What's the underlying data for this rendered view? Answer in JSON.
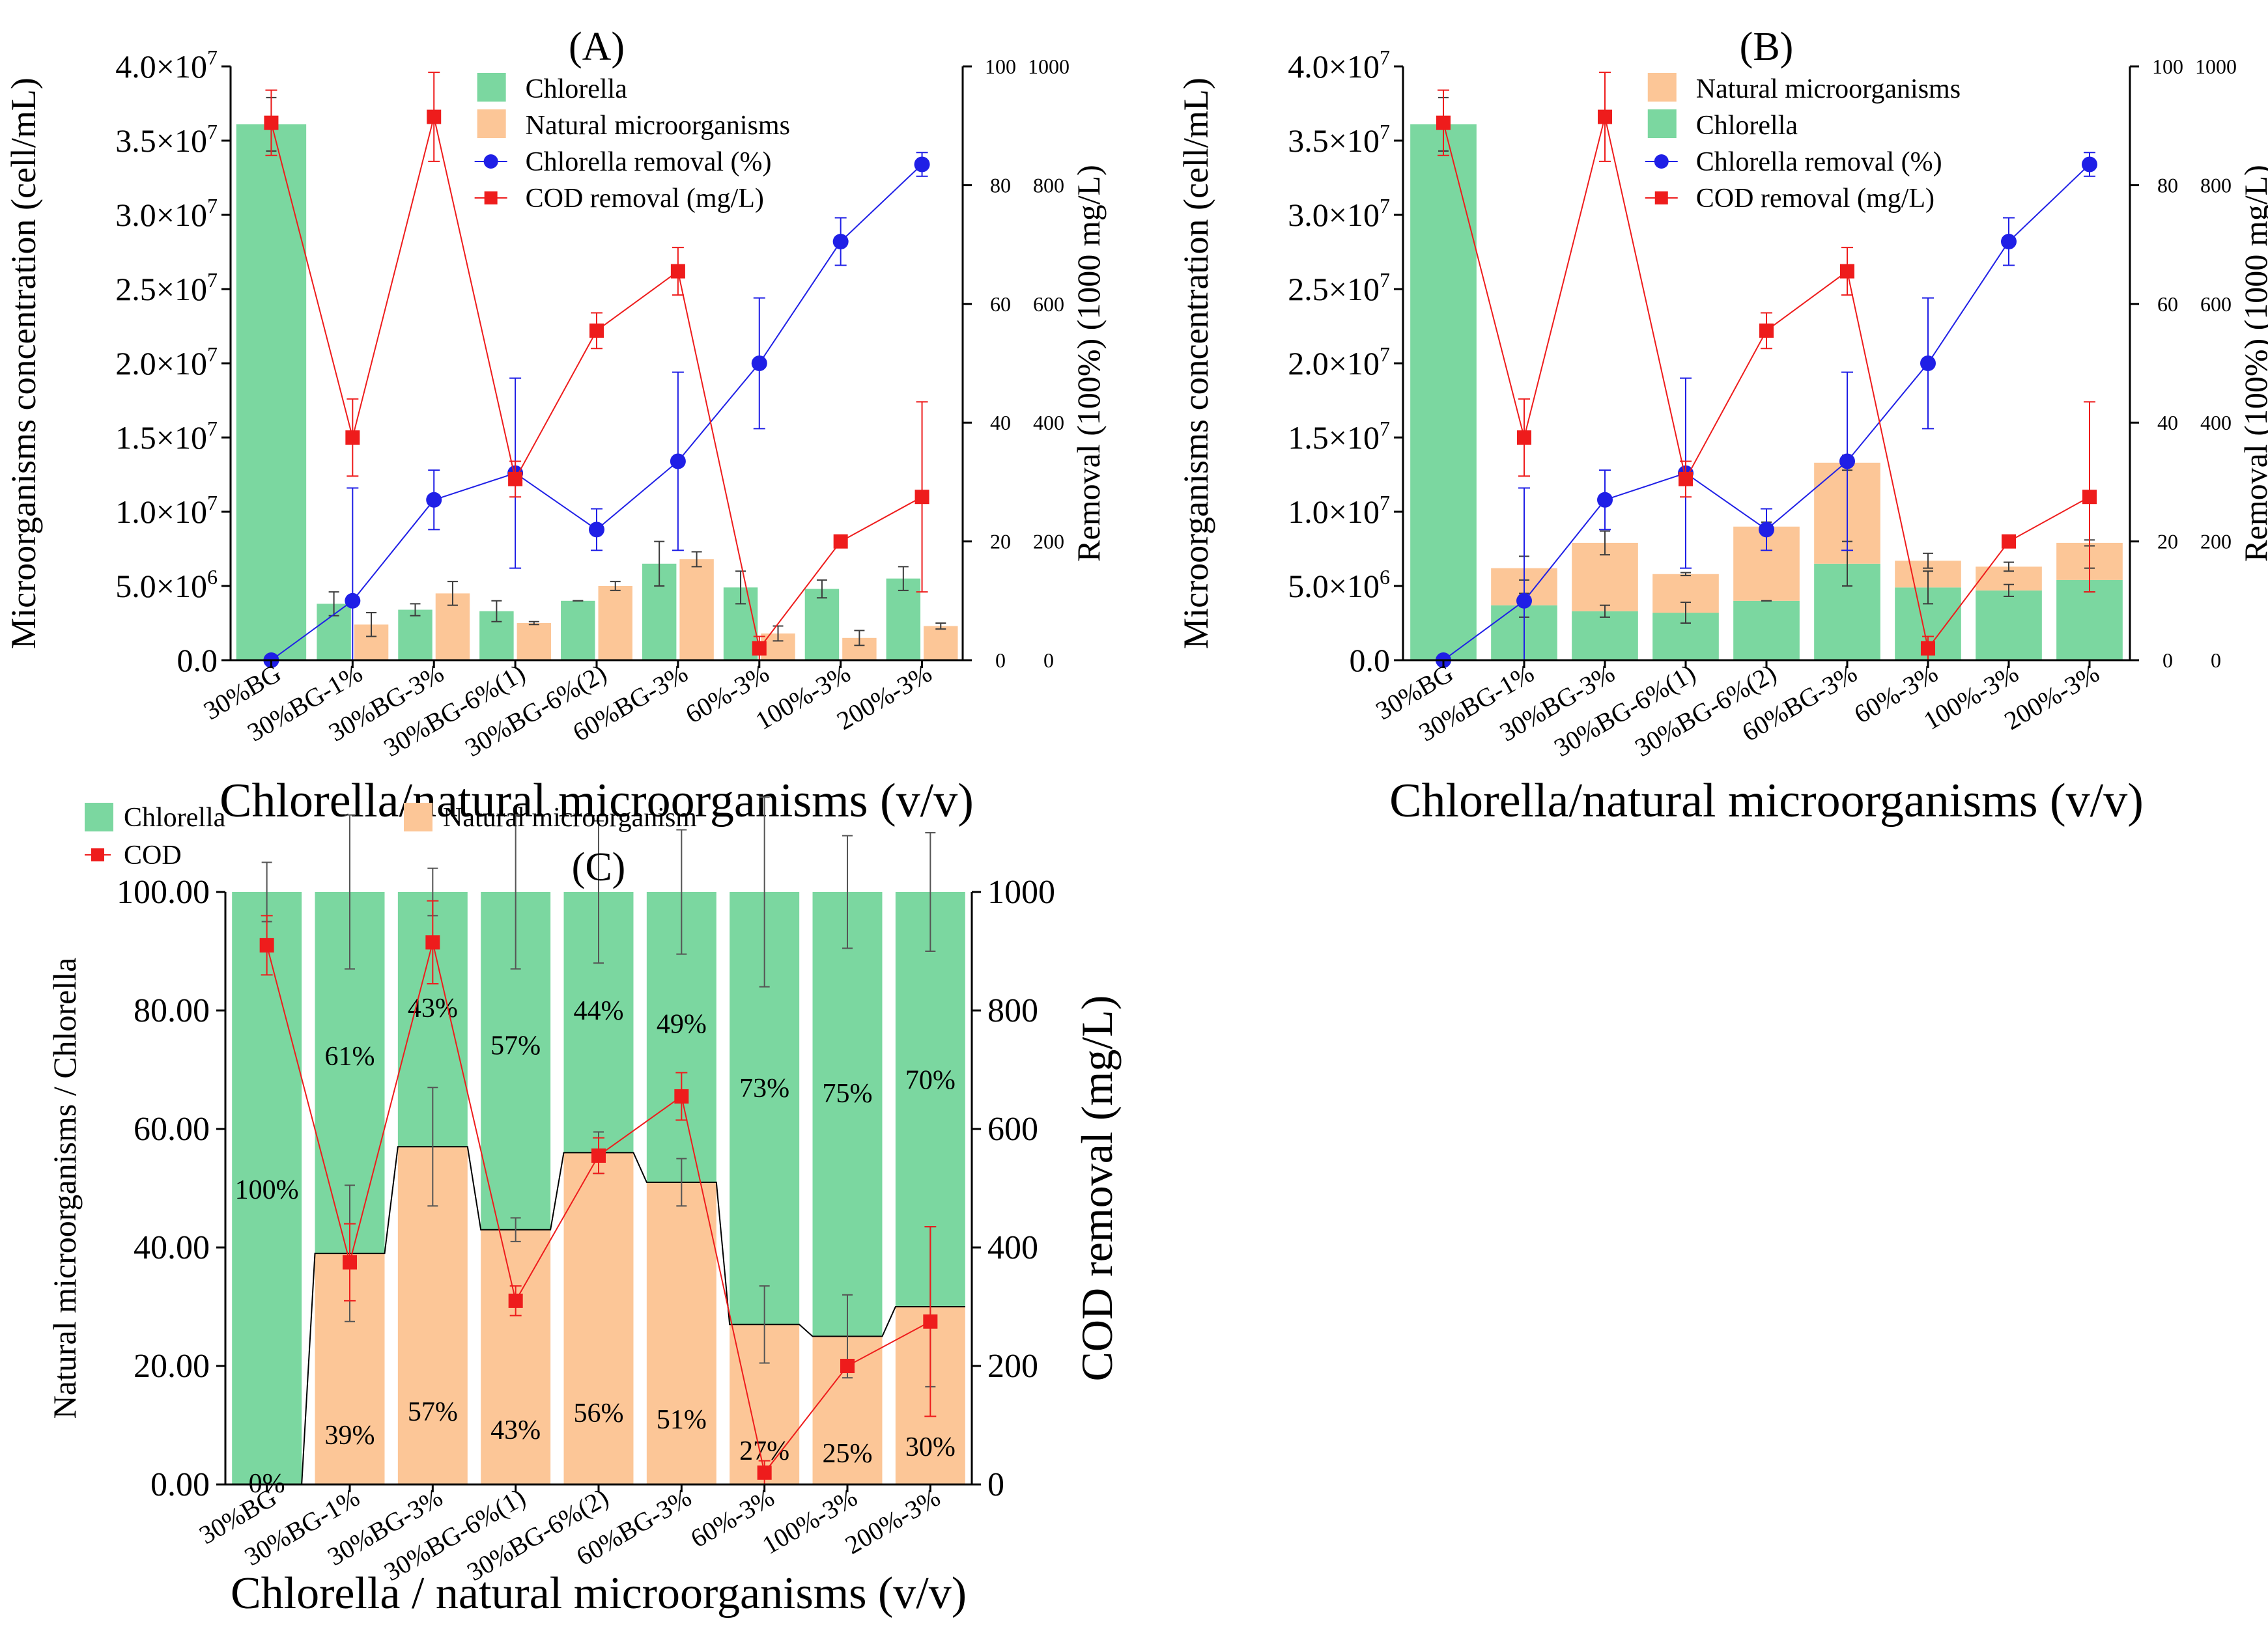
{
  "colors": {
    "chlorella": "#7bd7a0",
    "natural": "#fcc697",
    "chlorella_removal": "#1f1fe6",
    "cod": "#ee1c1c",
    "axis": "#000000",
    "errorbar_bar": "#3c3c3c"
  },
  "chart_data": [
    {
      "id": "A",
      "type": "bar",
      "panel_label": "(A)",
      "bar_mode": "grouped",
      "categories": [
        "30%BG",
        "30%BG-1%",
        "30%BG-3%",
        "30%BG-6%(1)",
        "30%BG-6%(2)",
        "60%BG-3%",
        "60%-3%",
        "100%-3%",
        "200%-3%"
      ],
      "xlabel": "Chlorella/natural microorganisms (v/v)",
      "ylabel": "Microorganisms concentration (cell/mL)",
      "ylim": [
        0,
        40000000
      ],
      "yticks": [
        "0.0",
        "5.0×10^6",
        "1.0×10^7",
        "1.5×10^7",
        "2.0×10^7",
        "2.5×10^7",
        "3.0×10^7",
        "3.5×10^7",
        "4.0×10^7"
      ],
      "y2label": "Removal (100%) (1000 mg/L)",
      "y2_inner_ticks": [
        "0",
        "20",
        "40",
        "60",
        "80",
        "100"
      ],
      "y2_outer_ticks": [
        "0",
        "200",
        "400",
        "600",
        "800",
        "1000"
      ],
      "y2lim": [
        0,
        100
      ],
      "legend": [
        "Chlorella",
        "Natural microorganisms",
        "Chlorella removal (%)",
        "COD removal (mg/L)"
      ],
      "legend_position": "top-center",
      "bars": [
        {
          "name": "Chlorella",
          "values": [
            36100000,
            3800000,
            3400000,
            3300000,
            4000000,
            6500000,
            4900000,
            4800000,
            5500000
          ],
          "errors": [
            1800000,
            800000,
            400000,
            700000,
            0,
            1500000,
            1100000,
            600000,
            800000
          ]
        },
        {
          "name": "Natural microorganisms",
          "values": [
            null,
            2400000,
            4500000,
            2500000,
            5000000,
            6800000,
            1800000,
            1500000,
            2300000
          ],
          "errors": [
            null,
            800000,
            800000,
            100000,
            300000,
            500000,
            500000,
            500000,
            200000
          ]
        }
      ],
      "lines": [
        {
          "name": "Chlorella removal (%)",
          "values": [
            0,
            10,
            27,
            31.5,
            22,
            33.5,
            50,
            70.5,
            83.5
          ],
          "errors": [
            0,
            19,
            5,
            16,
            3.5,
            15,
            11,
            4,
            2
          ]
        },
        {
          "name": "COD removal (mg/L)",
          "values": [
            90.5,
            37.5,
            91.5,
            30.5,
            55.5,
            65.5,
            2,
            20,
            27.5
          ],
          "errors": [
            5.5,
            6.5,
            7.5,
            3,
            3,
            4,
            2,
            0,
            16
          ]
        }
      ]
    },
    {
      "id": "B",
      "type": "bar",
      "panel_label": "(B)",
      "bar_mode": "stacked",
      "categories": [
        "30%BG",
        "30%BG-1%",
        "30%BG-3%",
        "30%BG-6%(1)",
        "30%BG-6%(2)",
        "60%BG-3%",
        "60%-3%",
        "100%-3%",
        "200%-3%"
      ],
      "xlabel": "Chlorella/natural microorganisms (v/v)",
      "ylabel": "Microorganisms concentration (cell/mL)",
      "ylim": [
        0,
        40000000
      ],
      "yticks": [
        "0.0",
        "5.0×10^6",
        "1.0×10^7",
        "1.5×10^7",
        "2.0×10^7",
        "2.5×10^7",
        "3.0×10^7",
        "3.5×10^7",
        "4.0×10^7"
      ],
      "y2label": "Removal (100%) (1000 mg/L)",
      "y2_inner_ticks": [
        "0",
        "20",
        "40",
        "60",
        "80",
        "100"
      ],
      "y2_outer_ticks": [
        "0",
        "200",
        "400",
        "600",
        "800",
        "1000"
      ],
      "y2lim": [
        0,
        100
      ],
      "legend": [
        "Natural microorganisms",
        "Chlorella",
        "Chlorella removal (%)",
        "COD removal (mg/L)"
      ],
      "legend_position": "top-center",
      "bars": [
        {
          "name": "Chlorella",
          "values": [
            36100000,
            3700000,
            3300000,
            3200000,
            4000000,
            6500000,
            4900000,
            4700000,
            5400000
          ],
          "errors": [
            1800000,
            800000,
            400000,
            700000,
            0,
            1500000,
            1100000,
            400000,
            800000
          ]
        },
        {
          "name": "Natural microorganisms",
          "values": [
            0,
            2500000,
            4600000,
            2600000,
            5000000,
            6800000,
            1800000,
            1600000,
            2500000
          ],
          "errors": [
            0,
            800000,
            800000,
            100000,
            300000,
            500000,
            500000,
            300000,
            200000
          ]
        }
      ],
      "lines": [
        {
          "name": "Chlorella removal (%)",
          "values": [
            0,
            10,
            27,
            31.5,
            22,
            33.5,
            50,
            70.5,
            83.5
          ],
          "errors": [
            0,
            19,
            5,
            16,
            3.5,
            15,
            11,
            4,
            2
          ]
        },
        {
          "name": "COD removal (mg/L)",
          "values": [
            90.5,
            37.5,
            91.5,
            30.5,
            55.5,
            65.5,
            2,
            20,
            27.5
          ],
          "errors": [
            5.5,
            6.5,
            7.5,
            3,
            3,
            4,
            2,
            0,
            16
          ]
        }
      ]
    },
    {
      "id": "C",
      "type": "bar",
      "panel_label": "(C)",
      "bar_mode": "stacked-percent",
      "categories": [
        "30%BG",
        "30%BG-1%",
        "30%BG-3%",
        "30%BG-6%(1)",
        "30%BG-6%(2)",
        "60%BG-3%",
        "60%-3%",
        "100%-3%",
        "200%-3%"
      ],
      "xlabel": "Chlorella / natural microorganisms (v/v)",
      "ylabel": "Natural microorganisms / Chlorella",
      "ylim": [
        0,
        100
      ],
      "yticks": [
        "0.00",
        "20.00",
        "40.00",
        "60.00",
        "80.00",
        "100.00"
      ],
      "y2label": "COD removal (mg/L)",
      "y2lim": [
        0,
        1000
      ],
      "y2ticks": [
        "0",
        "200",
        "400",
        "600",
        "800",
        "1000"
      ],
      "legend": [
        "Chlorella",
        "Natural microorganism",
        "COD"
      ],
      "legend_position": "top-left",
      "natural_percent": [
        0,
        39,
        57,
        43,
        56,
        51,
        27,
        25,
        30
      ],
      "chlorella_percent": [
        100,
        61,
        43,
        57,
        44,
        49,
        73,
        75,
        70
      ],
      "natural_labels": [
        "0%",
        "39%",
        "57%",
        "43%",
        "56%",
        "51%",
        "27%",
        "25%",
        "30%"
      ],
      "chlorella_labels": [
        "100%",
        "61%",
        "43%",
        "57%",
        "44%",
        "49%",
        "73%",
        "75%",
        "70%"
      ],
      "natural_errors": [
        0,
        11.5,
        10,
        2,
        3.5,
        4,
        6.5,
        7,
        13.5
      ],
      "chlorella_errors": [
        5,
        13,
        4,
        13,
        12,
        10.5,
        16,
        9.5,
        10
      ],
      "cod": {
        "name": "COD",
        "values": [
          910,
          375,
          915,
          310,
          555,
          655,
          20,
          200,
          275
        ],
        "errors": [
          50,
          65,
          70,
          25,
          30,
          40,
          20,
          0,
          160
        ]
      }
    }
  ]
}
